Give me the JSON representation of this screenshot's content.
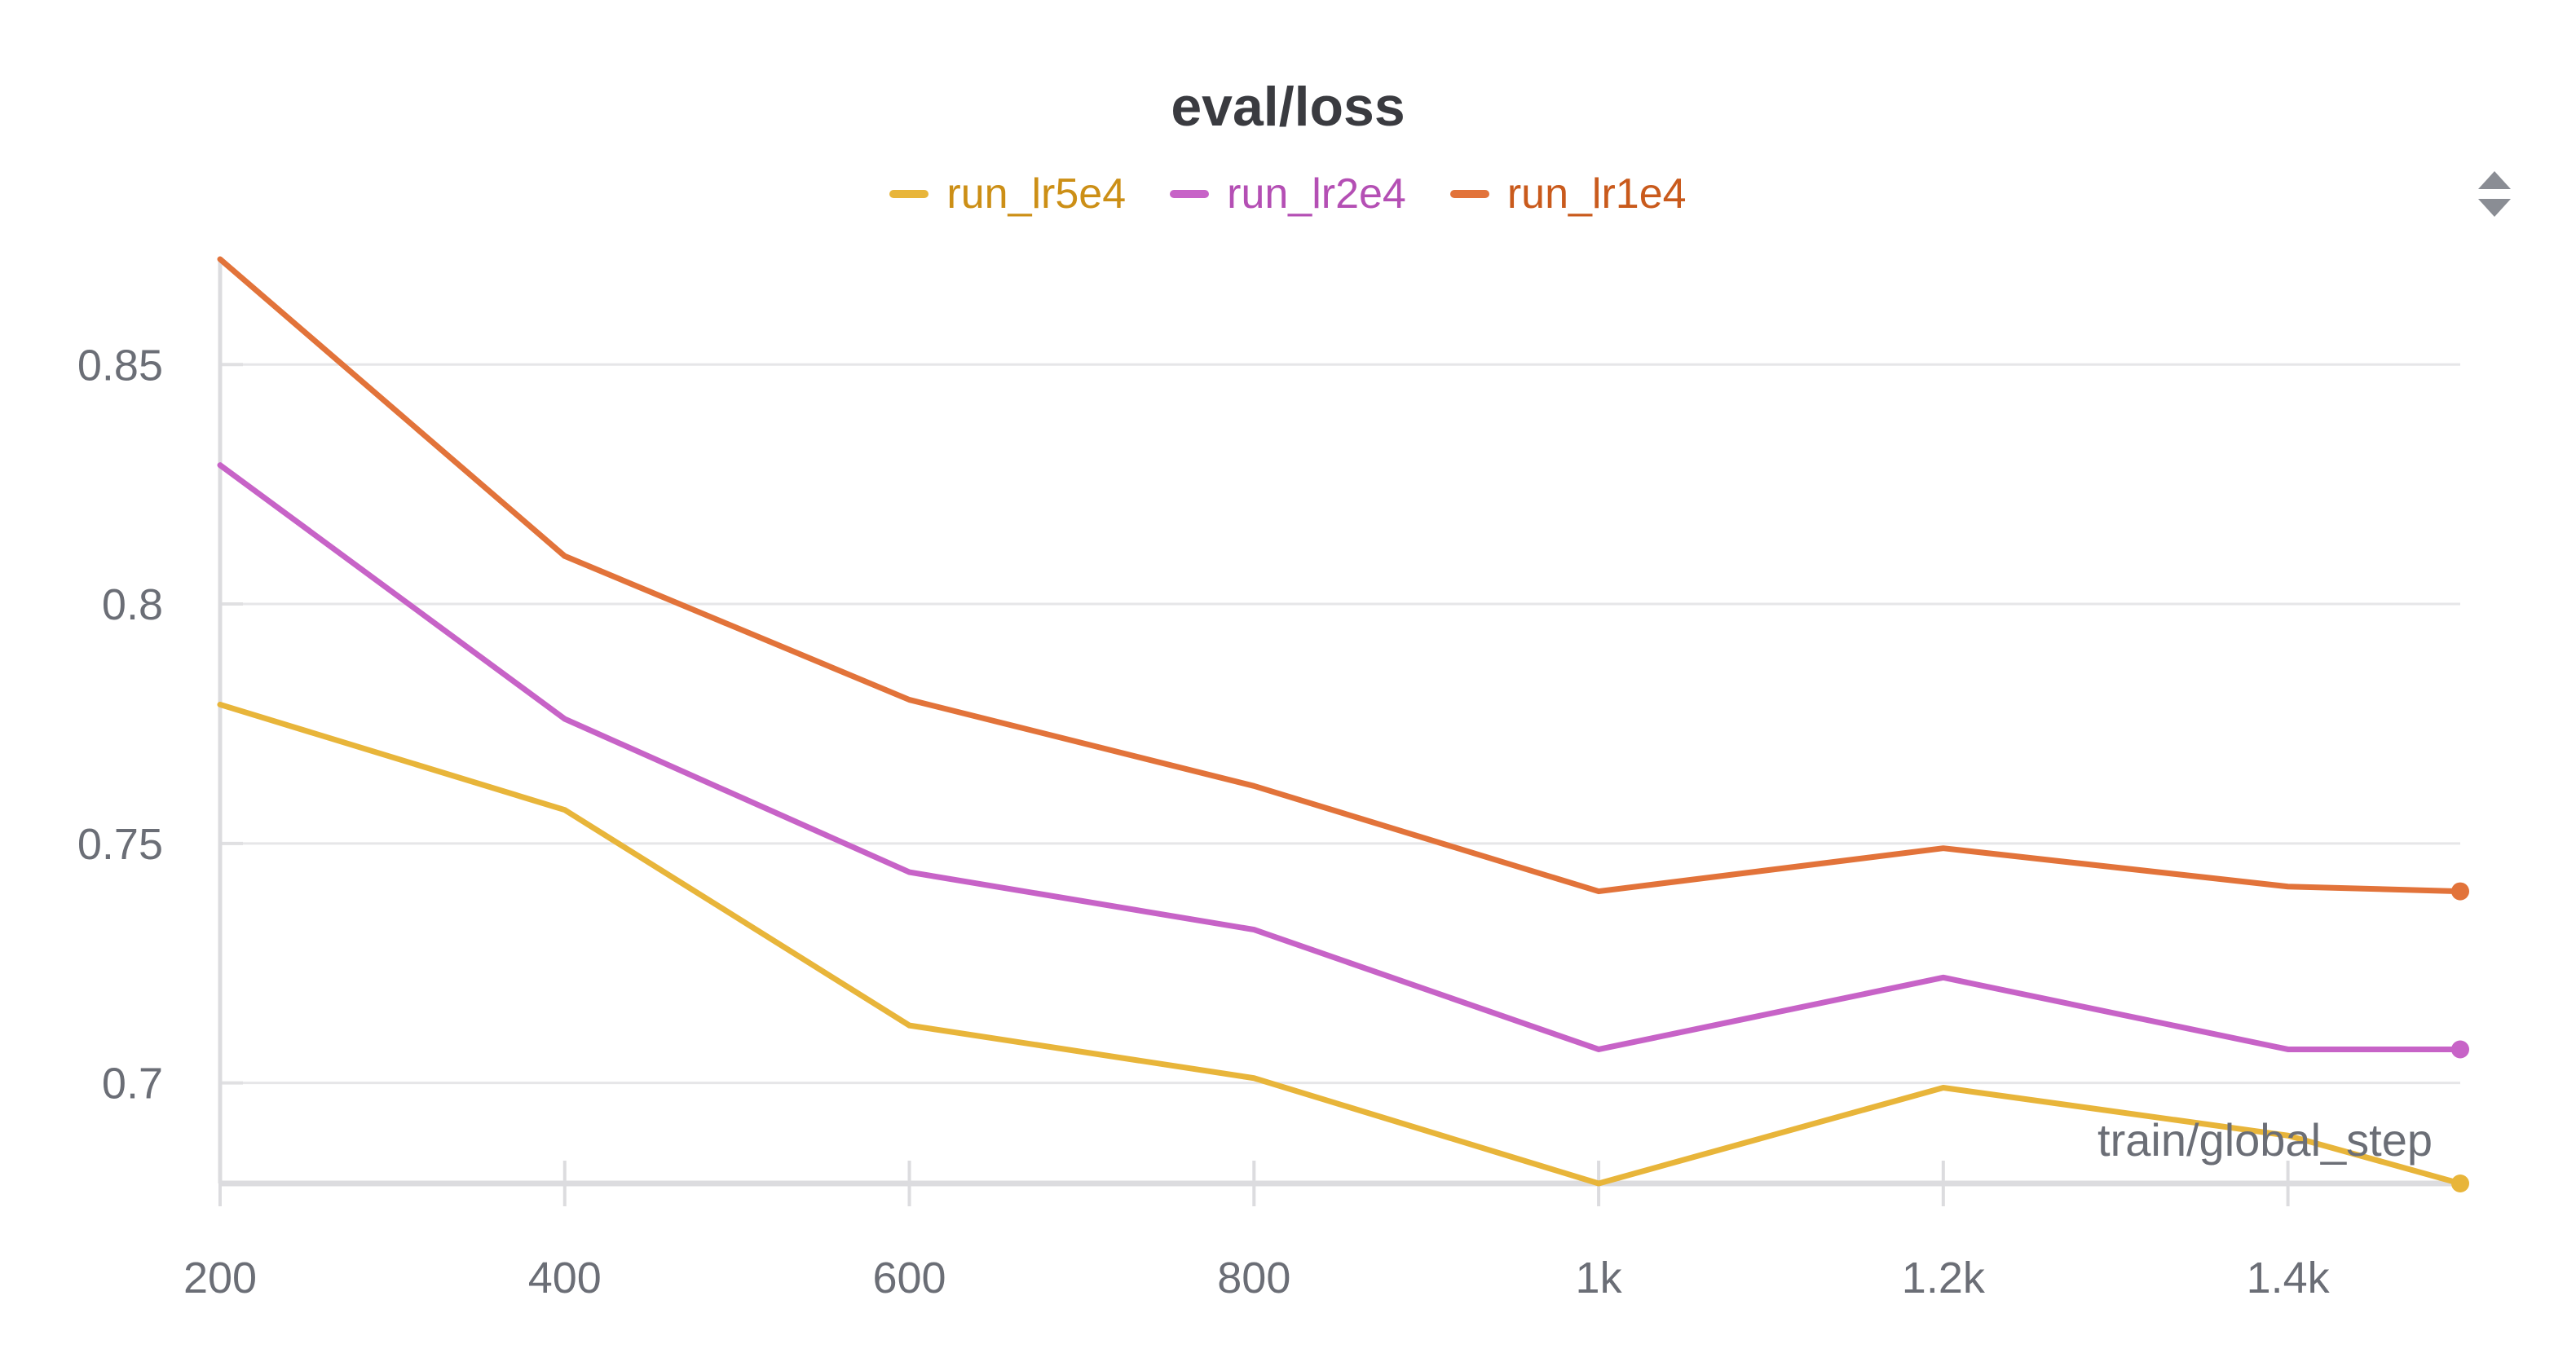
{
  "chart_data": {
    "type": "line",
    "title": "eval/loss",
    "xlabel": "train/global_step",
    "ylabel": "",
    "x": [
      200,
      400,
      600,
      800,
      1000,
      1200,
      1400,
      1500
    ],
    "xlim": [
      200,
      1500
    ],
    "ylim": [
      0.679,
      0.872
    ],
    "x_ticks": [
      {
        "value": 200,
        "label": "200"
      },
      {
        "value": 400,
        "label": "400"
      },
      {
        "value": 600,
        "label": "600"
      },
      {
        "value": 800,
        "label": "800"
      },
      {
        "value": 1000,
        "label": "1k"
      },
      {
        "value": 1200,
        "label": "1.2k"
      },
      {
        "value": 1400,
        "label": "1.4k"
      }
    ],
    "y_ticks": [
      {
        "value": 0.7,
        "label": "0.7"
      },
      {
        "value": 0.75,
        "label": "0.75"
      },
      {
        "value": 0.8,
        "label": "0.8"
      },
      {
        "value": 0.85,
        "label": "0.85"
      }
    ],
    "grid": true,
    "legend_position": "top-center",
    "series": [
      {
        "name": "run_lr5e4",
        "color": "#e8b53a",
        "legend_text_color": "#cc8f16",
        "values": [
          0.779,
          0.757,
          0.712,
          0.701,
          0.679,
          0.699,
          0.689,
          0.679
        ]
      },
      {
        "name": "run_lr2e4",
        "color": "#c763c7",
        "legend_text_color": "#b44fb4",
        "values": [
          0.829,
          0.776,
          0.744,
          0.732,
          0.707,
          0.722,
          0.707,
          0.707
        ]
      },
      {
        "name": "run_lr1e4",
        "color": "#e2733a",
        "legend_text_color": "#c95a1c",
        "values": [
          0.872,
          0.81,
          0.78,
          0.762,
          0.74,
          0.749,
          0.741,
          0.74
        ]
      }
    ]
  },
  "icons": {
    "menu": "sort-arrows-icon"
  }
}
